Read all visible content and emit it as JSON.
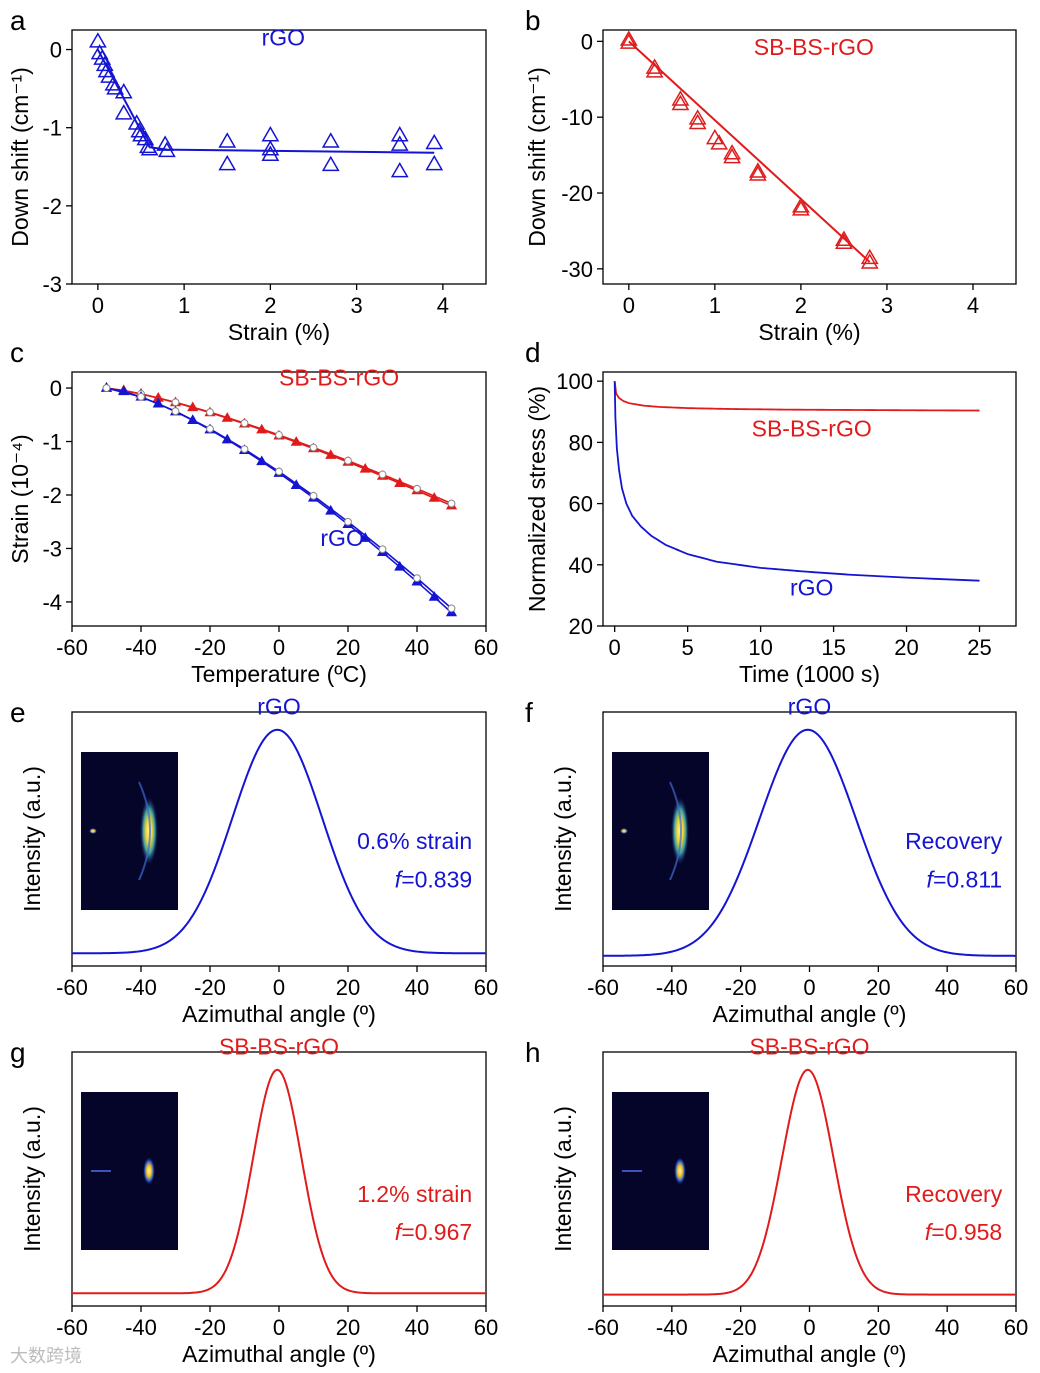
{
  "colors": {
    "rgo": "#1414d2",
    "sbbs": "#e01b1b",
    "axis": "#000000",
    "open_marker": "#ffffff"
  },
  "watermark": "大数跨境",
  "chart_data": [
    {
      "id": "a",
      "panel_label": "a",
      "type": "scatter",
      "marker": "triangle-open",
      "xlabel": "Strain (%)",
      "ylabel": "Down shift (cm⁻¹)",
      "xlim": [
        -0.3,
        4.5
      ],
      "ylim": [
        -3,
        0.25
      ],
      "xticks": [
        0,
        1,
        2,
        3,
        4
      ],
      "yticks": [
        -3,
        -2,
        -1,
        0
      ],
      "annotations": [
        {
          "text": "rGO",
          "color": "rgo",
          "x": 2.15,
          "y": 0.05
        }
      ],
      "series": [
        {
          "color": "rgo",
          "points": [
            [
              0,
              0.1
            ],
            [
              0.02,
              -0.05
            ],
            [
              0.05,
              -0.12
            ],
            [
              0.08,
              -0.2
            ],
            [
              0.1,
              -0.28
            ],
            [
              0.13,
              -0.35
            ],
            [
              0.18,
              -0.45
            ],
            [
              0.2,
              -0.5
            ],
            [
              0.3,
              -0.55
            ],
            [
              0.3,
              -0.82
            ],
            [
              0.45,
              -0.95
            ],
            [
              0.48,
              -1.05
            ],
            [
              0.5,
              -1.1
            ],
            [
              0.55,
              -1.15
            ],
            [
              0.58,
              -1.25
            ],
            [
              0.6,
              -1.28
            ],
            [
              0.78,
              -1.22
            ],
            [
              0.8,
              -1.3
            ],
            [
              1.5,
              -1.18
            ],
            [
              1.5,
              -1.47
            ],
            [
              2.0,
              -1.1
            ],
            [
              2.0,
              -1.28
            ],
            [
              2.0,
              -1.35
            ],
            [
              2.7,
              -1.18
            ],
            [
              2.7,
              -1.48
            ],
            [
              3.5,
              -1.1
            ],
            [
              3.5,
              -1.22
            ],
            [
              3.5,
              -1.56
            ],
            [
              3.9,
              -1.2
            ],
            [
              3.9,
              -1.47
            ]
          ],
          "fit": [
            [
              0,
              0
            ],
            [
              0.6,
              -1.25
            ],
            [
              0.8,
              -1.28
            ],
            [
              3.9,
              -1.32
            ]
          ]
        }
      ]
    },
    {
      "id": "b",
      "panel_label": "b",
      "type": "scatter",
      "marker": "triangle-open",
      "xlabel": "Strain (%)",
      "ylabel": "Down shift (cm⁻¹)",
      "xlim": [
        -0.3,
        4.5
      ],
      "ylim": [
        -32,
        1.5
      ],
      "xticks": [
        0,
        1,
        2,
        3,
        4
      ],
      "yticks": [
        -30,
        -20,
        -10,
        0
      ],
      "annotations": [
        {
          "text": "SB-BS-rGO",
          "color": "sbbs",
          "x": 2.15,
          "y": -1.8
        }
      ],
      "series": [
        {
          "color": "sbbs",
          "points": [
            [
              0,
              0.2
            ],
            [
              0,
              -0.2
            ],
            [
              0.3,
              -3.5
            ],
            [
              0.3,
              -4.0
            ],
            [
              0.6,
              -7.7
            ],
            [
              0.6,
              -8.3
            ],
            [
              0.8,
              -10.2
            ],
            [
              0.8,
              -10.8
            ],
            [
              1.0,
              -12.8
            ],
            [
              1.05,
              -13.5
            ],
            [
              1.2,
              -14.8
            ],
            [
              1.2,
              -15.3
            ],
            [
              1.5,
              -17.2
            ],
            [
              1.5,
              -17.6
            ],
            [
              2.0,
              -21.8
            ],
            [
              2.0,
              -22.2
            ],
            [
              2.5,
              -26.2
            ],
            [
              2.5,
              -26.6
            ],
            [
              2.8,
              -28.6
            ],
            [
              2.8,
              -29.2
            ]
          ],
          "fit": [
            [
              0,
              0
            ],
            [
              2.8,
              -29.1
            ]
          ]
        }
      ]
    },
    {
      "id": "c",
      "panel_label": "c",
      "type": "line",
      "xlabel": "Temperature (ºC)",
      "ylabel": "Strain (10⁻⁴)",
      "xlim": [
        -60,
        60
      ],
      "ylim": [
        -4.45,
        0.3
      ],
      "xticks": [
        -60,
        -40,
        -20,
        0,
        20,
        40,
        60
      ],
      "yticks": [
        -4,
        -3,
        -2,
        -1,
        0
      ],
      "annotations": [
        {
          "text": "SB-BS-rGO",
          "color": "sbbs",
          "x": 0,
          "y": 0.05
        },
        {
          "text": "rGO",
          "color": "rgo",
          "x": 12,
          "y": -2.95
        }
      ],
      "series": [
        {
          "color": "sbbs",
          "marker": "triangle-filled",
          "x0": -50,
          "x1": 50,
          "points": 21,
          "curve": [
            0,
            -2.2
          ],
          "power": 1.3
        },
        {
          "color": "sbbs",
          "marker": "circle-open",
          "x0": -50,
          "x1": 50,
          "points": 11,
          "curve": [
            0,
            -2.16
          ],
          "power": 1.3
        },
        {
          "color": "rgo",
          "marker": "triangle-filled",
          "x0": -50,
          "x1": 50,
          "points": 21,
          "curve": [
            0,
            -4.2
          ],
          "power": 1.4
        },
        {
          "color": "rgo",
          "marker": "circle-open",
          "x0": -50,
          "x1": 50,
          "points": 11,
          "curve": [
            0,
            -4.12
          ],
          "power": 1.4
        }
      ]
    },
    {
      "id": "d",
      "panel_label": "d",
      "type": "line",
      "xlabel": "Time (1000 s)",
      "ylabel": "Normalized stress (%)",
      "xlim": [
        -0.8,
        27.5
      ],
      "ylim": [
        20,
        103
      ],
      "xticks": [
        0,
        5,
        10,
        15,
        20,
        25
      ],
      "yticks": [
        20,
        40,
        60,
        80,
        100
      ],
      "annotations": [
        {
          "text": "SB-BS-rGO",
          "color": "sbbs",
          "x": 13.5,
          "y": 82
        },
        {
          "text": "rGO",
          "color": "rgo",
          "x": 13.5,
          "y": 30
        }
      ],
      "series": [
        {
          "color": "sbbs",
          "x": [
            0,
            0.1,
            0.3,
            0.6,
            1,
            2,
            3,
            5,
            8,
            12,
            16,
            20,
            25
          ],
          "values": [
            100,
            96,
            94.5,
            93.5,
            92.8,
            92,
            91.6,
            91.2,
            90.9,
            90.7,
            90.6,
            90.5,
            90.4
          ]
        },
        {
          "color": "rgo",
          "x": [
            0,
            0.05,
            0.15,
            0.3,
            0.5,
            0.8,
            1.2,
            1.8,
            2.5,
            3.5,
            5,
            7,
            10,
            13,
            16,
            20,
            25
          ],
          "values": [
            100,
            88,
            78,
            71,
            65,
            60,
            56,
            52.5,
            49.5,
            46.5,
            43.5,
            41,
            39,
            37.8,
            36.8,
            35.8,
            34.8
          ]
        }
      ]
    },
    {
      "id": "e",
      "panel_label": "e",
      "type": "line",
      "xlabel": "Azimuthal angle (º)",
      "ylabel": "Intensity (a.u.)",
      "xlim": [
        -60,
        60
      ],
      "ylim": [
        0,
        1
      ],
      "xticks": [
        -60,
        -40,
        -20,
        0,
        20,
        40,
        60
      ],
      "yticks": [],
      "inset": "wide-arc",
      "annotations": [
        {
          "text": "rGO",
          "color": "rgo",
          "x": 0,
          "y": 0.99,
          "anchor": "middle"
        },
        {
          "text": "0.6% strain",
          "color": "rgo",
          "x": 56,
          "y": 0.46,
          "anchor": "end"
        },
        {
          "text": "f=0.839",
          "color": "rgo",
          "x": 56,
          "y": 0.31,
          "anchor": "end",
          "italic_prefix": "f"
        }
      ],
      "series": [
        {
          "color": "rgo",
          "peak_center": -0.5,
          "sigma": 13,
          "baseline": 0.05,
          "peak": 0.93
        }
      ]
    },
    {
      "id": "f",
      "panel_label": "f",
      "type": "line",
      "xlabel": "Azimuthal angle (º)",
      "ylabel": "Intensity (a.u.)",
      "xlim": [
        -60,
        60
      ],
      "ylim": [
        0,
        1
      ],
      "xticks": [
        -60,
        -40,
        -20,
        0,
        20,
        40,
        60
      ],
      "yticks": [],
      "inset": "wide-arc",
      "annotations": [
        {
          "text": "rGO",
          "color": "rgo",
          "x": 0,
          "y": 0.99,
          "anchor": "middle"
        },
        {
          "text": "Recovery",
          "color": "rgo",
          "x": 56,
          "y": 0.46,
          "anchor": "end"
        },
        {
          "text": "f=0.811",
          "color": "rgo",
          "x": 56,
          "y": 0.31,
          "anchor": "end",
          "italic_prefix": "f"
        }
      ],
      "series": [
        {
          "color": "rgo",
          "peak_center": -0.5,
          "sigma": 14,
          "baseline": 0.04,
          "peak": 0.93
        }
      ]
    },
    {
      "id": "g",
      "panel_label": "g",
      "type": "line",
      "xlabel": "Azimuthal angle (º)",
      "ylabel": "Intensity (a.u.)",
      "xlim": [
        -60,
        60
      ],
      "ylim": [
        0,
        1
      ],
      "xticks": [
        -60,
        -40,
        -20,
        0,
        20,
        40,
        60
      ],
      "yticks": [],
      "inset": "narrow-spot",
      "annotations": [
        {
          "text": "SB-BS-rGO",
          "color": "sbbs",
          "x": 0,
          "y": 0.99,
          "anchor": "middle"
        },
        {
          "text": "1.2% strain",
          "color": "sbbs",
          "x": 56,
          "y": 0.41,
          "anchor": "end"
        },
        {
          "text": "f=0.967",
          "color": "sbbs",
          "x": 56,
          "y": 0.26,
          "anchor": "end",
          "italic_prefix": "f"
        }
      ],
      "series": [
        {
          "color": "sbbs",
          "peak_center": -0.5,
          "sigma": 7,
          "baseline": 0.05,
          "peak": 0.93
        }
      ]
    },
    {
      "id": "h",
      "panel_label": "h",
      "type": "line",
      "xlabel": "Azimuthal angle (º)",
      "ylabel": "Intensity (a.u.)",
      "xlim": [
        -60,
        60
      ],
      "ylim": [
        0,
        1
      ],
      "xticks": [
        -60,
        -40,
        -20,
        0,
        20,
        40,
        60
      ],
      "yticks": [],
      "inset": "narrow-spot",
      "annotations": [
        {
          "text": "SB-BS-rGO",
          "color": "sbbs",
          "x": 0,
          "y": 0.99,
          "anchor": "middle"
        },
        {
          "text": "Recovery",
          "color": "sbbs",
          "x": 56,
          "y": 0.41,
          "anchor": "end"
        },
        {
          "text": "f=0.958",
          "color": "sbbs",
          "x": 56,
          "y": 0.26,
          "anchor": "end",
          "italic_prefix": "f"
        }
      ],
      "series": [
        {
          "color": "sbbs",
          "peak_center": -0.5,
          "sigma": 7.5,
          "baseline": 0.045,
          "peak": 0.93
        }
      ]
    }
  ]
}
